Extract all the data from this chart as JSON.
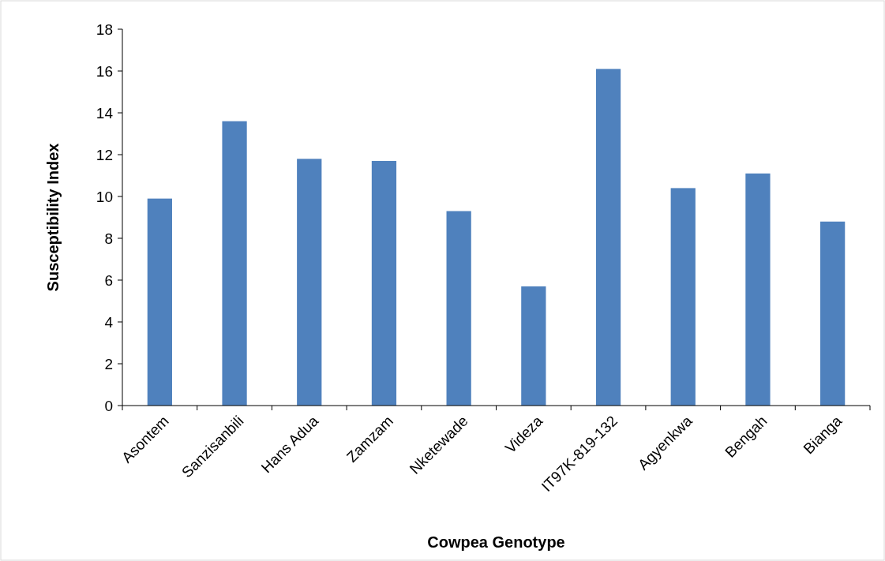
{
  "chart_data": {
    "type": "bar",
    "xlabel": "Cowpea Genotype",
    "ylabel": "Susceptibility Index",
    "categories": [
      "Asontem",
      "Sanzisanbili",
      "Hans Adua",
      "Zamzam",
      "Nketewade",
      "Videza",
      "IT97K-819-132",
      "Agyenkwa",
      "Bengah",
      "Bianga"
    ],
    "values": [
      9.9,
      13.6,
      11.8,
      11.7,
      9.3,
      5.7,
      16.1,
      10.4,
      11.1,
      8.8
    ],
    "color": "#4f81bd",
    "ylim": [
      0,
      18
    ],
    "yticks": [
      0,
      2,
      4,
      6,
      8,
      10,
      12,
      14,
      16,
      18
    ],
    "grid": false
  }
}
